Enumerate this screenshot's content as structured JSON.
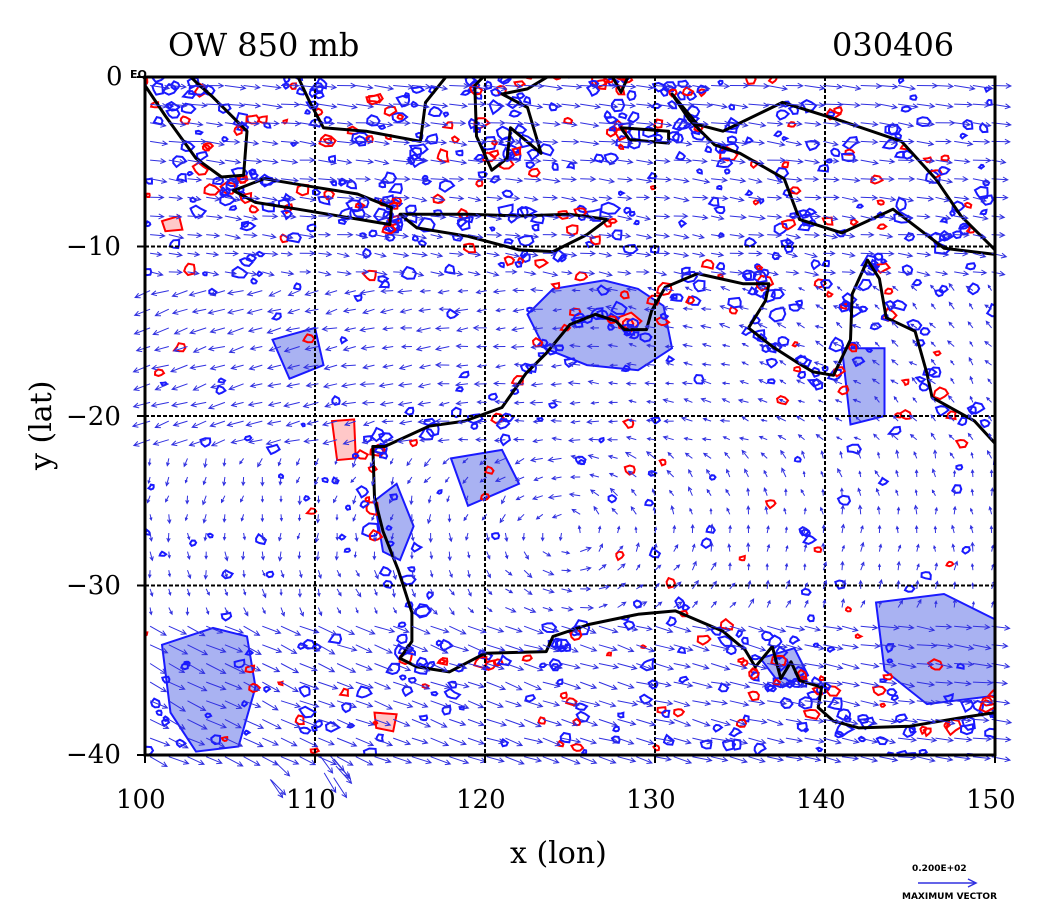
{
  "title_left": "OW 850 mb",
  "title_right": "030406",
  "x_axis": {
    "label": "x (lon)",
    "ticks": [
      "100",
      "110",
      "120",
      "130",
      "140",
      "150"
    ],
    "range": [
      100,
      150
    ]
  },
  "y_axis": {
    "label": "y (lat)",
    "ticks": [
      "0",
      "−10",
      "−20",
      "−30",
      "−40"
    ],
    "range": [
      -40,
      0
    ]
  },
  "corner_tag": "EQ",
  "vector_legend": {
    "magnitude": "0.200E+02",
    "label": "MAXIMUM VECTOR"
  },
  "colors": {
    "vector": "#3030e0",
    "negative_contour": "#1a1aff",
    "negative_fill": "#a9b2f2",
    "positive_contour": "#ff0000",
    "positive_fill": "#ffc8c8",
    "coastline": "#000000",
    "grid": "#000000"
  },
  "map": {
    "projection": "lat-lon",
    "grid_lines_lon": [
      110,
      120,
      130,
      140
    ],
    "grid_lines_lat": [
      -10,
      -20,
      -30
    ],
    "grid_style": "dashed"
  }
}
